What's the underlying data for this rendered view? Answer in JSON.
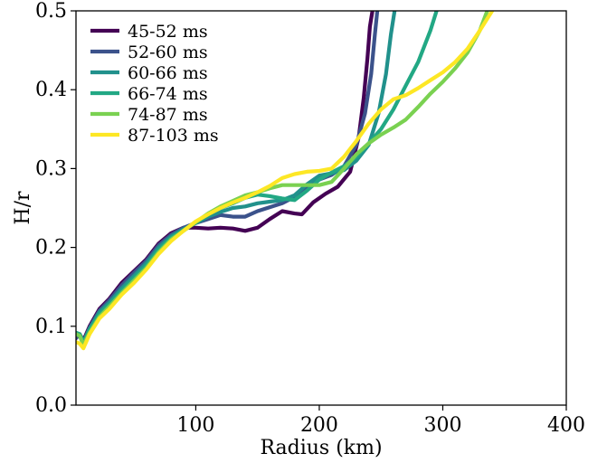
{
  "chart_data": {
    "type": "line",
    "xlabel": "Radius (km)",
    "ylabel": "H/r",
    "xlim": [
      3,
      400
    ],
    "ylim": [
      0,
      0.5
    ],
    "xticks": [
      100,
      200,
      300,
      400
    ],
    "yticks": [
      0.0,
      0.1,
      0.2,
      0.3,
      0.4,
      0.5
    ],
    "xtick_labels": [
      "100",
      "200",
      "300",
      "400"
    ],
    "ytick_labels": [
      "0.0",
      "0.1",
      "0.2",
      "0.3",
      "0.4",
      "0.5"
    ],
    "grid": false,
    "legend_position": "top-left",
    "series": [
      {
        "name": "45-52 ms",
        "color": "#440154",
        "points": [
          [
            3,
            0.085
          ],
          [
            6,
            0.09
          ],
          [
            9,
            0.082
          ],
          [
            14,
            0.1
          ],
          [
            22,
            0.122
          ],
          [
            30,
            0.135
          ],
          [
            40,
            0.155
          ],
          [
            50,
            0.17
          ],
          [
            60,
            0.185
          ],
          [
            70,
            0.205
          ],
          [
            80,
            0.218
          ],
          [
            90,
            0.225
          ],
          [
            100,
            0.225
          ],
          [
            110,
            0.224
          ],
          [
            120,
            0.225
          ],
          [
            130,
            0.224
          ],
          [
            140,
            0.221
          ],
          [
            150,
            0.225
          ],
          [
            160,
            0.236
          ],
          [
            170,
            0.246
          ],
          [
            180,
            0.243
          ],
          [
            186,
            0.242
          ],
          [
            195,
            0.257
          ],
          [
            205,
            0.268
          ],
          [
            215,
            0.277
          ],
          [
            225,
            0.296
          ],
          [
            232,
            0.34
          ],
          [
            236,
            0.39
          ],
          [
            239,
            0.44
          ],
          [
            241,
            0.48
          ],
          [
            243,
            0.5
          ]
        ]
      },
      {
        "name": "52-60 ms",
        "color": "#3b528b",
        "points": [
          [
            3,
            0.085
          ],
          [
            6,
            0.09
          ],
          [
            9,
            0.08
          ],
          [
            14,
            0.098
          ],
          [
            22,
            0.12
          ],
          [
            30,
            0.133
          ],
          [
            40,
            0.152
          ],
          [
            50,
            0.168
          ],
          [
            60,
            0.183
          ],
          [
            70,
            0.203
          ],
          [
            80,
            0.216
          ],
          [
            90,
            0.225
          ],
          [
            100,
            0.231
          ],
          [
            110,
            0.236
          ],
          [
            120,
            0.241
          ],
          [
            130,
            0.239
          ],
          [
            140,
            0.239
          ],
          [
            150,
            0.246
          ],
          [
            160,
            0.251
          ],
          [
            170,
            0.256
          ],
          [
            180,
            0.264
          ],
          [
            190,
            0.276
          ],
          [
            200,
            0.286
          ],
          [
            210,
            0.292
          ],
          [
            220,
            0.303
          ],
          [
            230,
            0.33
          ],
          [
            237,
            0.37
          ],
          [
            242,
            0.42
          ],
          [
            245,
            0.47
          ],
          [
            247,
            0.5
          ]
        ]
      },
      {
        "name": "60-66 ms",
        "color": "#21918c",
        "points": [
          [
            3,
            0.09
          ],
          [
            6,
            0.09
          ],
          [
            9,
            0.08
          ],
          [
            14,
            0.097
          ],
          [
            22,
            0.118
          ],
          [
            30,
            0.13
          ],
          [
            40,
            0.148
          ],
          [
            50,
            0.164
          ],
          [
            60,
            0.18
          ],
          [
            70,
            0.2
          ],
          [
            80,
            0.214
          ],
          [
            90,
            0.223
          ],
          [
            100,
            0.231
          ],
          [
            110,
            0.239
          ],
          [
            120,
            0.245
          ],
          [
            130,
            0.25
          ],
          [
            140,
            0.252
          ],
          [
            150,
            0.256
          ],
          [
            160,
            0.258
          ],
          [
            170,
            0.26
          ],
          [
            180,
            0.266
          ],
          [
            190,
            0.28
          ],
          [
            200,
            0.291
          ],
          [
            210,
            0.294
          ],
          [
            220,
            0.298
          ],
          [
            230,
            0.31
          ],
          [
            240,
            0.33
          ],
          [
            248,
            0.37
          ],
          [
            254,
            0.42
          ],
          [
            258,
            0.47
          ],
          [
            261,
            0.5
          ]
        ]
      },
      {
        "name": "66-74 ms",
        "color": "#22a884",
        "points": [
          [
            3,
            0.092
          ],
          [
            6,
            0.09
          ],
          [
            9,
            0.078
          ],
          [
            14,
            0.095
          ],
          [
            22,
            0.115
          ],
          [
            30,
            0.128
          ],
          [
            40,
            0.145
          ],
          [
            50,
            0.161
          ],
          [
            60,
            0.177
          ],
          [
            70,
            0.197
          ],
          [
            80,
            0.212
          ],
          [
            90,
            0.222
          ],
          [
            100,
            0.232
          ],
          [
            110,
            0.242
          ],
          [
            120,
            0.25
          ],
          [
            130,
            0.256
          ],
          [
            140,
            0.263
          ],
          [
            150,
            0.267
          ],
          [
            160,
            0.265
          ],
          [
            170,
            0.262
          ],
          [
            180,
            0.26
          ],
          [
            190,
            0.272
          ],
          [
            200,
            0.286
          ],
          [
            210,
            0.295
          ],
          [
            220,
            0.303
          ],
          [
            230,
            0.315
          ],
          [
            240,
            0.332
          ],
          [
            250,
            0.35
          ],
          [
            260,
            0.375
          ],
          [
            270,
            0.405
          ],
          [
            280,
            0.435
          ],
          [
            290,
            0.475
          ],
          [
            295,
            0.5
          ]
        ]
      },
      {
        "name": "74-87 ms",
        "color": "#7ad151",
        "points": [
          [
            3,
            0.09
          ],
          [
            6,
            0.088
          ],
          [
            9,
            0.076
          ],
          [
            14,
            0.092
          ],
          [
            22,
            0.112
          ],
          [
            30,
            0.125
          ],
          [
            40,
            0.142
          ],
          [
            50,
            0.158
          ],
          [
            60,
            0.174
          ],
          [
            70,
            0.194
          ],
          [
            80,
            0.21
          ],
          [
            90,
            0.221
          ],
          [
            100,
            0.232
          ],
          [
            110,
            0.243
          ],
          [
            120,
            0.252
          ],
          [
            130,
            0.259
          ],
          [
            140,
            0.266
          ],
          [
            150,
            0.27
          ],
          [
            160,
            0.275
          ],
          [
            170,
            0.279
          ],
          [
            180,
            0.279
          ],
          [
            190,
            0.279
          ],
          [
            200,
            0.279
          ],
          [
            210,
            0.283
          ],
          [
            220,
            0.3
          ],
          [
            230,
            0.318
          ],
          [
            240,
            0.332
          ],
          [
            250,
            0.343
          ],
          [
            260,
            0.352
          ],
          [
            270,
            0.362
          ],
          [
            280,
            0.378
          ],
          [
            290,
            0.395
          ],
          [
            300,
            0.41
          ],
          [
            310,
            0.427
          ],
          [
            320,
            0.447
          ],
          [
            330,
            0.475
          ],
          [
            336,
            0.5
          ]
        ]
      },
      {
        "name": "87-103 ms",
        "color": "#fde725",
        "points": [
          [
            3,
            0.08
          ],
          [
            6,
            0.078
          ],
          [
            9,
            0.072
          ],
          [
            14,
            0.09
          ],
          [
            22,
            0.11
          ],
          [
            30,
            0.122
          ],
          [
            40,
            0.14
          ],
          [
            50,
            0.155
          ],
          [
            60,
            0.172
          ],
          [
            70,
            0.192
          ],
          [
            80,
            0.208
          ],
          [
            90,
            0.221
          ],
          [
            100,
            0.233
          ],
          [
            110,
            0.242
          ],
          [
            120,
            0.25
          ],
          [
            130,
            0.257
          ],
          [
            140,
            0.263
          ],
          [
            150,
            0.27
          ],
          [
            160,
            0.278
          ],
          [
            170,
            0.288
          ],
          [
            180,
            0.293
          ],
          [
            190,
            0.296
          ],
          [
            200,
            0.297
          ],
          [
            210,
            0.3
          ],
          [
            220,
            0.315
          ],
          [
            230,
            0.335
          ],
          [
            240,
            0.357
          ],
          [
            250,
            0.375
          ],
          [
            260,
            0.388
          ],
          [
            270,
            0.393
          ],
          [
            280,
            0.402
          ],
          [
            290,
            0.412
          ],
          [
            300,
            0.422
          ],
          [
            310,
            0.435
          ],
          [
            320,
            0.452
          ],
          [
            330,
            0.475
          ],
          [
            340,
            0.5
          ]
        ]
      }
    ]
  }
}
